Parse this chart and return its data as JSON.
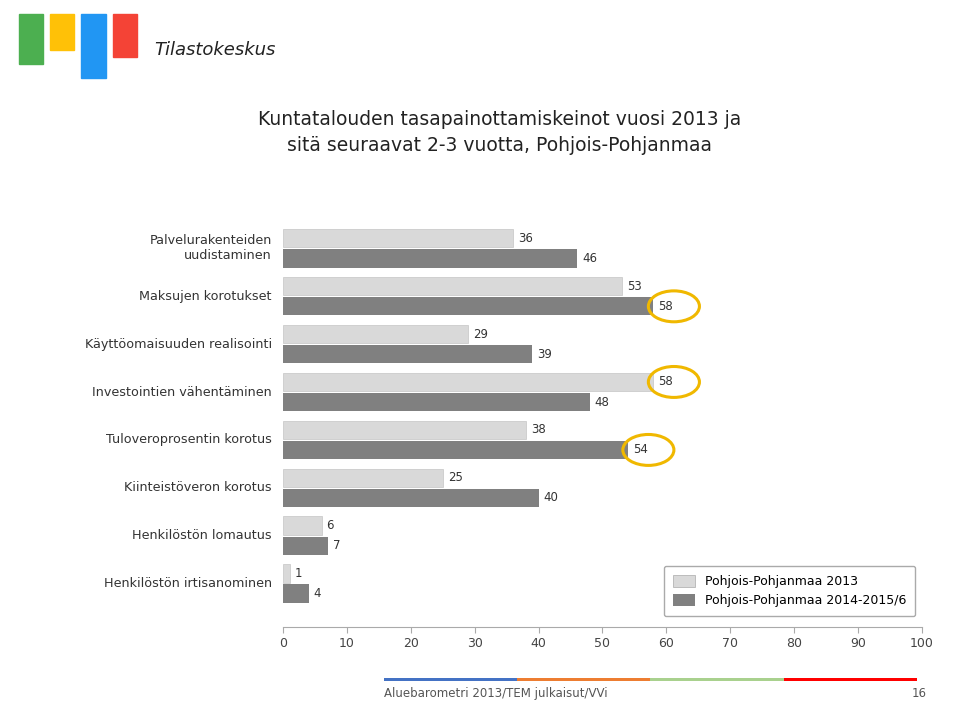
{
  "title_line1": "Kuntatalouden tasapainottamiskeinot vuosi 2013 ja",
  "title_line2": "sitä seuraavat 2-3 vuotta, Pohjois-Pohjanmaa",
  "categories": [
    "Palvelurakenteiden\nuudistaminen",
    "Maksujen korotukset",
    "Käyttöomaisuuden realisointi",
    "Investointien vähentäminen",
    "Tuloveroprosentin korotus",
    "Kiinteistöveron korotus",
    "Henkilöstön lomautus",
    "Henkilöstön irtisanominen"
  ],
  "values_2013": [
    36,
    53,
    29,
    58,
    38,
    25,
    6,
    1
  ],
  "values_2014": [
    46,
    58,
    39,
    48,
    54,
    40,
    7,
    4
  ],
  "color_2013": "#d9d9d9",
  "color_2014": "#808080",
  "circle_color": "#f0b800",
  "legend_2013": "Pohjois-Pohjanmaa 2013",
  "legend_2014": "Pohjois-Pohjanmaa 2014-2015/6",
  "xlim": [
    0,
    100
  ],
  "xticks": [
    0,
    10,
    20,
    30,
    40,
    50,
    60,
    70,
    80,
    90,
    100
  ],
  "footer_text": "Aluebarometri 2013/TEM julkaisut/VVi",
  "footer_page": "16",
  "background_color": "#ffffff",
  "bar_height": 0.38,
  "bar_gap": 0.04
}
